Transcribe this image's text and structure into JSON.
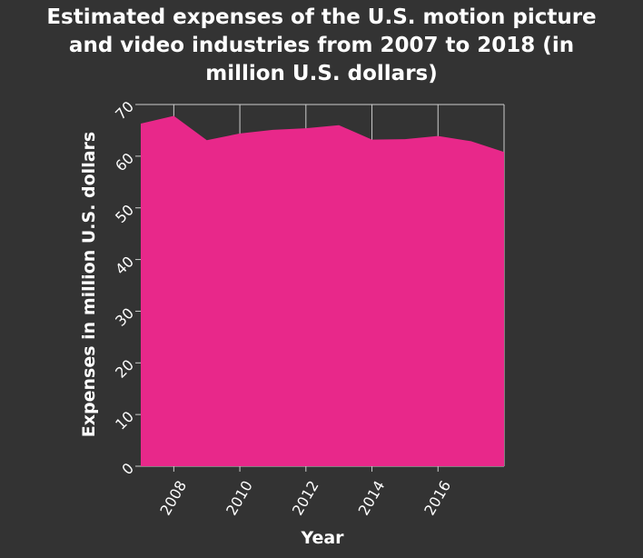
{
  "chart_data": {
    "type": "area",
    "title_lines": [
      "Estimated expenses of the U.S. motion picture",
      "and video industries from 2007 to 2018 (in",
      "million U.S. dollars)"
    ],
    "xlabel": "Year",
    "ylabel": "Expenses in million U.S. dollars",
    "x": [
      2007,
      2008,
      2009,
      2010,
      2011,
      2012,
      2013,
      2014,
      2015,
      2016,
      2017,
      2018
    ],
    "values": [
      66.3,
      67.8,
      63.1,
      64.4,
      65.1,
      65.4,
      66.0,
      63.2,
      63.3,
      63.9,
      62.9,
      60.8
    ],
    "xlim": [
      2007,
      2018
    ],
    "ylim": [
      0,
      70
    ],
    "xticks": [
      "2008",
      "2010",
      "2012",
      "2014",
      "2016"
    ],
    "yticks": [
      "0",
      "10",
      "20",
      "30",
      "40",
      "50",
      "60",
      "70"
    ],
    "grid": true,
    "colors": {
      "area": "#e8288a",
      "background": "#333333",
      "grid": "#cccccc",
      "text": "#ffffff"
    }
  }
}
